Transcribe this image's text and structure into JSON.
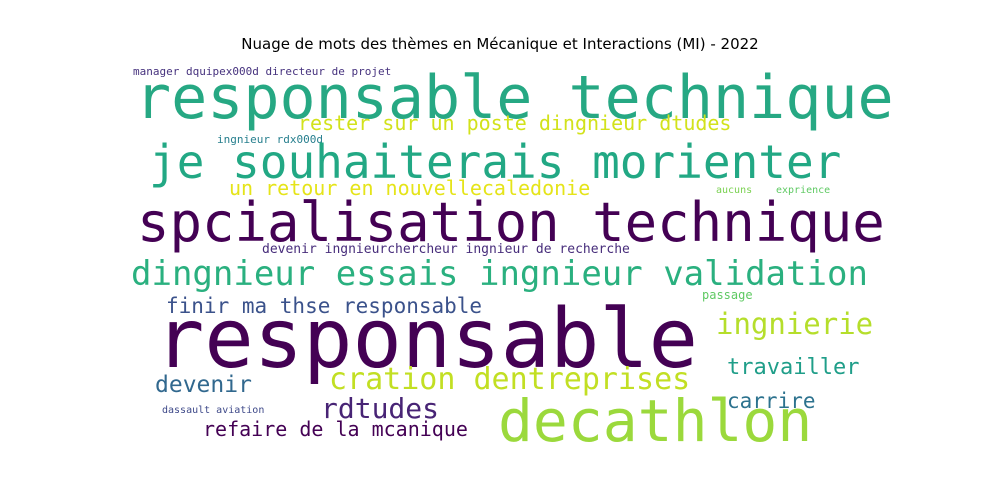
{
  "title": "Nuage de mots des thèmes en Mécanique et Interactions (MI) - 2022",
  "words": [
    {
      "text": "manager dquipex000d directeur de projet",
      "color": "#46327e"
    },
    {
      "text": "responsable technique",
      "color": "#26a883"
    },
    {
      "text": "rester sur un poste dingnieur dtudes",
      "color": "#d2e21b"
    },
    {
      "text": "ingnieur rdx000d",
      "color": "#277f8e"
    },
    {
      "text": "je souhaiterais morienter",
      "color": "#22a884"
    },
    {
      "text": "un retour en nouvellecaledonie",
      "color": "#e5e419"
    },
    {
      "text": "aucuns",
      "color": "#7ad151"
    },
    {
      "text": "exprience",
      "color": "#5ec962"
    },
    {
      "text": "spcialisation technique",
      "color": "#440154"
    },
    {
      "text": "devenir ingnieurchercheur ingnieur de recherche",
      "color": "#472d7b"
    },
    {
      "text": "dingnieur essais ingnieur validation",
      "color": "#2ab07f"
    },
    {
      "text": "passage",
      "color": "#5ec962"
    },
    {
      "text": "finir ma thse responsable",
      "color": "#3b528b"
    },
    {
      "text": "responsable",
      "color": "#440154"
    },
    {
      "text": "ingnierie",
      "color": "#b5de2b"
    },
    {
      "text": "travailler",
      "color": "#1f9e89"
    },
    {
      "text": "devenir",
      "color": "#31688e"
    },
    {
      "text": "cration dentreprises",
      "color": "#c2df23"
    },
    {
      "text": "rdtudes",
      "color": "#482475"
    },
    {
      "text": "carrire",
      "color": "#2c728e"
    },
    {
      "text": "dassault aviation",
      "color": "#3e4989"
    },
    {
      "text": "refaire de la mcanique",
      "color": "#440154"
    },
    {
      "text": "decathlon",
      "color": "#9bd93c"
    }
  ]
}
